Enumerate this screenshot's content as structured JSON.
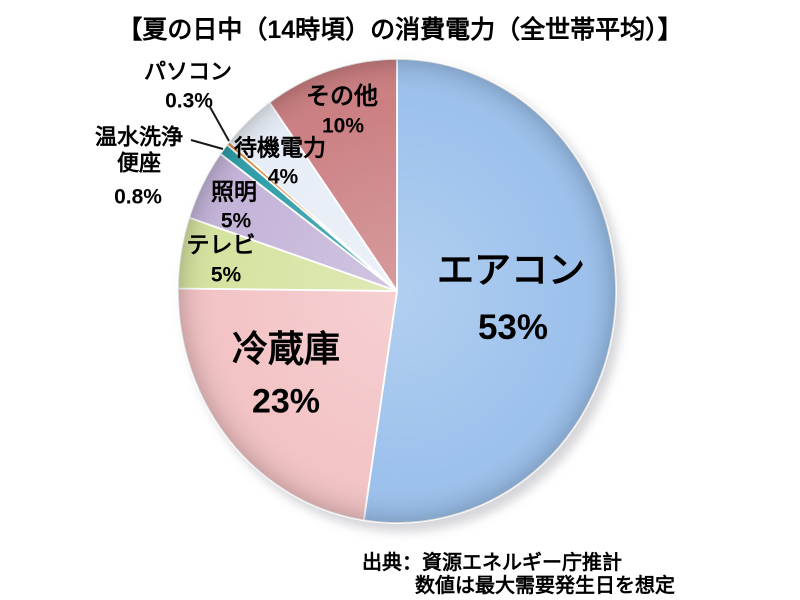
{
  "title": "【夏の日中（14時頃）の消費電力（全世帯平均）】",
  "source": {
    "line1": "出典：資源エネルギー庁推計",
    "line2": "数値は最大需要発生日を想定"
  },
  "chart_data": {
    "type": "pie",
    "title": "【夏の日中（14時頃）の消費電力（全世帯平均）】",
    "unit": "%",
    "start_angle_deg": 0,
    "direction": "clockwise",
    "legend": "none (labels placed on/around slices)",
    "slices": [
      {
        "label": "エアコン",
        "value": 53,
        "display": "53%",
        "color": "#9cc1ec"
      },
      {
        "label": "冷蔵庫",
        "value": 23,
        "display": "23%",
        "color": "#f3c3c5"
      },
      {
        "label": "テレビ",
        "value": 5,
        "display": "5%",
        "color": "#d5e3a0"
      },
      {
        "label": "照明",
        "value": 5,
        "display": "5%",
        "color": "#c4b4d9"
      },
      {
        "label": "温水洗浄便座",
        "value": 0.8,
        "display": "0.8%",
        "color": "#2f9ea8"
      },
      {
        "label": "パソコン",
        "value": 0.3,
        "display": "0.3%",
        "color": "#da8a3e"
      },
      {
        "label": "待機電力",
        "value": 4,
        "display": "4%",
        "color": "#e7edf6"
      },
      {
        "label": "その他",
        "value": 10,
        "display": "10%",
        "color": "#cb7f82"
      }
    ]
  }
}
